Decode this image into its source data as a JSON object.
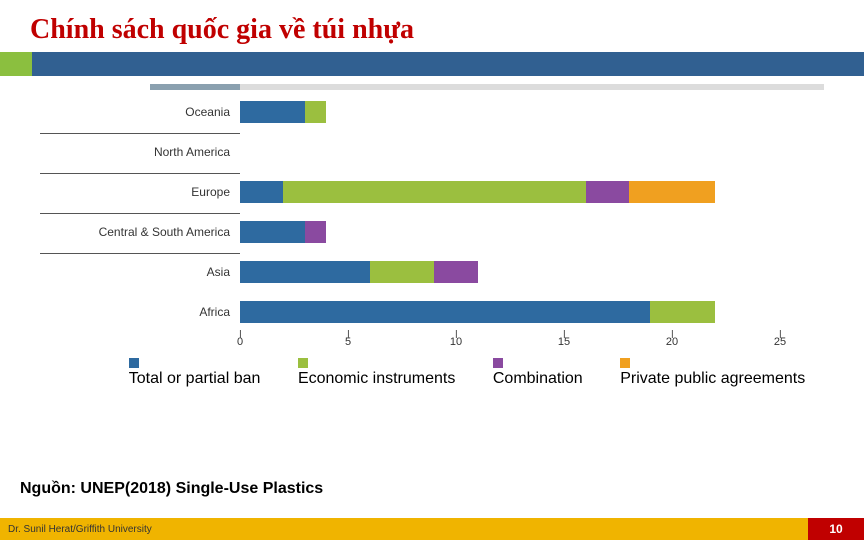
{
  "title": "Chính sách quốc gia về túi nhựa",
  "source": "Nguồn: UNEP(2018) Single-Use Plastics",
  "footer": {
    "left": "Dr. Sunil Herat/Griffith University",
    "page": "10"
  },
  "colors": {
    "ban": "#2e6aa0",
    "economic": "#9bbf3f",
    "combination": "#8a4aa0",
    "private": "#f0a020",
    "title": "#c00000",
    "accent_green": "#8bbf3f",
    "accent_blue": "#316091",
    "footer_yellow": "#f0b400",
    "footer_red": "#c00000",
    "grey_dark": "#8aa0af",
    "grey_light": "#dcdcdc"
  },
  "chart": {
    "type": "stacked-bar-horizontal",
    "x_max": 25,
    "x_ticks": [
      0,
      5,
      10,
      15,
      20,
      25
    ],
    "categories": [
      {
        "label": "Oceania",
        "sep": true,
        "values": {
          "ban": 3,
          "economic": 1,
          "combination": 0,
          "private": 0
        }
      },
      {
        "label": "North America",
        "sep": true,
        "values": {
          "ban": 0,
          "economic": 0,
          "combination": 0,
          "private": 0
        }
      },
      {
        "label": "Europe",
        "sep": true,
        "values": {
          "ban": 2,
          "economic": 14,
          "combination": 2,
          "private": 4
        }
      },
      {
        "label": "Central & South America",
        "sep": true,
        "values": {
          "ban": 3,
          "economic": 0,
          "combination": 1,
          "private": 0
        }
      },
      {
        "label": "Asia",
        "sep": false,
        "values": {
          "ban": 6,
          "economic": 3,
          "combination": 2,
          "private": 0
        }
      },
      {
        "label": "Africa",
        "sep": false,
        "values": {
          "ban": 19,
          "economic": 3,
          "combination": 0,
          "private": 0
        }
      }
    ],
    "legend": [
      {
        "key": "ban",
        "label": "Total or partial ban"
      },
      {
        "key": "economic",
        "label": "Economic instruments"
      },
      {
        "key": "combination",
        "label": "Combination"
      },
      {
        "key": "private",
        "label": "Private public agreements"
      }
    ]
  }
}
